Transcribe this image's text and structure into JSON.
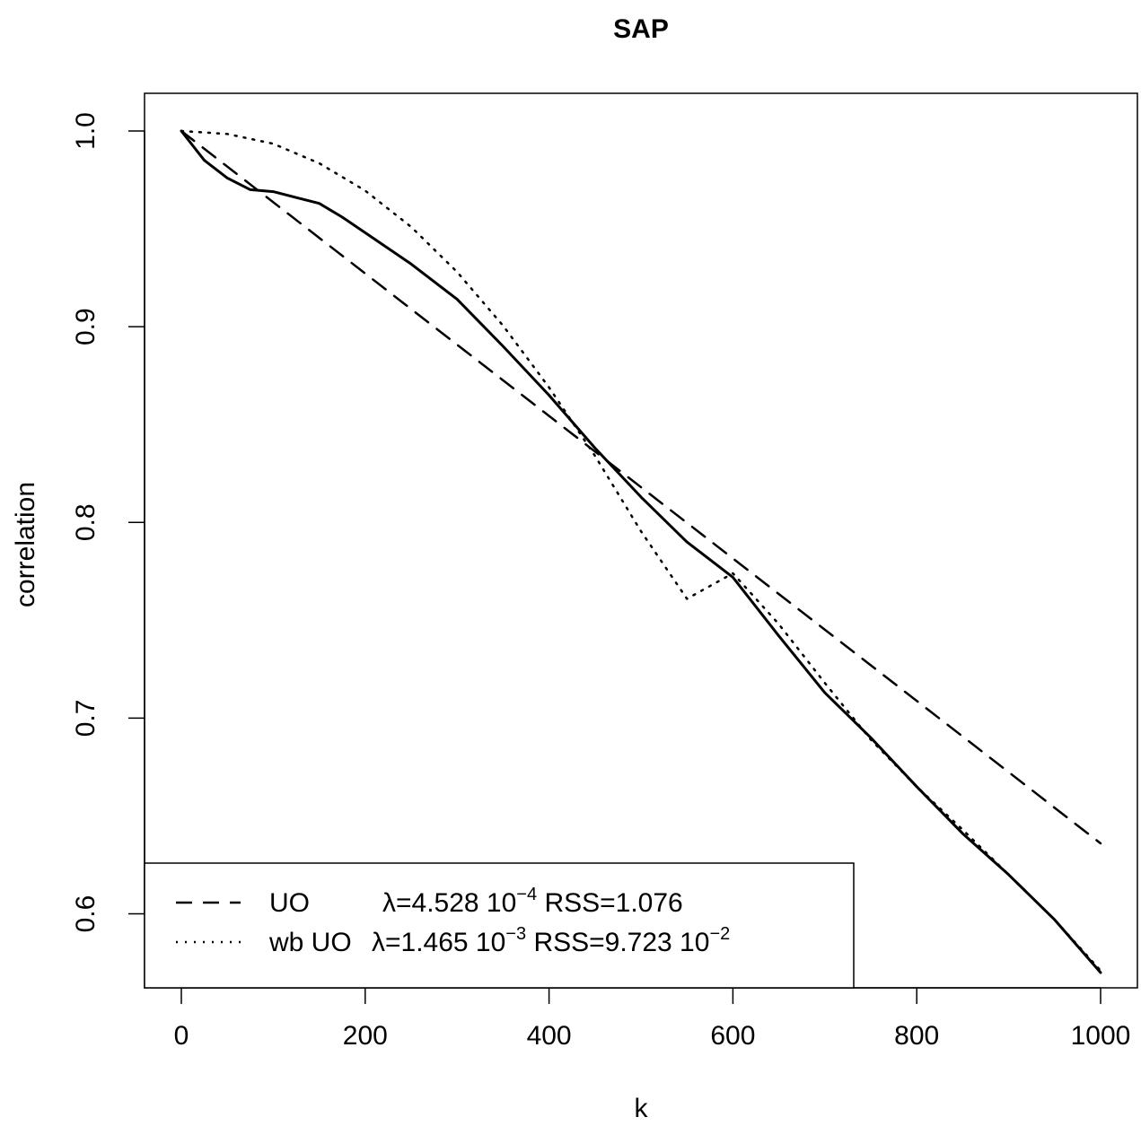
{
  "chart_data": {
    "type": "line",
    "title": "SAP",
    "xlabel": "k",
    "ylabel": "correlation",
    "xlim": [
      0,
      1000
    ],
    "ylim": [
      0.57,
      1.0
    ],
    "xticks": [
      0,
      200,
      400,
      600,
      800,
      1000
    ],
    "yticks": [
      0.6,
      0.7,
      0.8,
      0.9,
      1.0
    ],
    "xtick_labels": [
      "0",
      "200",
      "400",
      "600",
      "800",
      "1000"
    ],
    "ytick_labels": [
      "0.6",
      "0.7",
      "0.8",
      "0.9",
      "1.0"
    ],
    "grid": false,
    "legend_position": "bottom-left",
    "series": [
      {
        "style": "solid",
        "x": [
          0,
          25,
          50,
          75,
          100,
          125,
          150,
          175,
          200,
          250,
          300,
          350,
          400,
          450,
          500,
          550,
          600,
          650,
          700,
          750,
          800,
          850,
          900,
          950,
          1000
        ],
        "y": [
          1.0,
          0.985,
          0.976,
          0.97,
          0.969,
          0.966,
          0.963,
          0.956,
          0.948,
          0.932,
          0.914,
          0.89,
          0.865,
          0.838,
          0.813,
          0.79,
          0.772,
          0.742,
          0.713,
          0.69,
          0.665,
          0.641,
          0.62,
          0.597,
          0.57
        ]
      },
      {
        "name": "UO",
        "style": "dashed",
        "x": [
          0,
          1000
        ],
        "y": [
          1.0,
          0.636
        ]
      },
      {
        "name": "wb UO",
        "style": "dotted",
        "x": [
          0,
          50,
          100,
          150,
          200,
          250,
          300,
          350,
          400,
          450,
          500,
          550,
          600,
          650,
          700,
          750,
          800,
          850,
          900,
          950,
          1000
        ],
        "y": [
          1.0,
          0.9985,
          0.9935,
          0.9835,
          0.9695,
          0.951,
          0.928,
          0.9005,
          0.869,
          0.834,
          0.7955,
          0.761,
          0.774,
          0.748,
          0.718,
          0.689,
          0.665,
          0.643,
          0.62,
          0.597,
          0.571
        ]
      }
    ],
    "legend": [
      {
        "style": "dashed",
        "name": "UO",
        "lambda_label": "λ=4.528 10",
        "lambda_exp": "−4",
        "rss_label": "RSS=1.076",
        "rss_exp": ""
      },
      {
        "style": "dotted",
        "name": "wb UO",
        "lambda_label": "λ=1.465 10",
        "lambda_exp": "−3",
        "rss_label": "RSS=9.723 10",
        "rss_exp": "−2"
      }
    ]
  }
}
